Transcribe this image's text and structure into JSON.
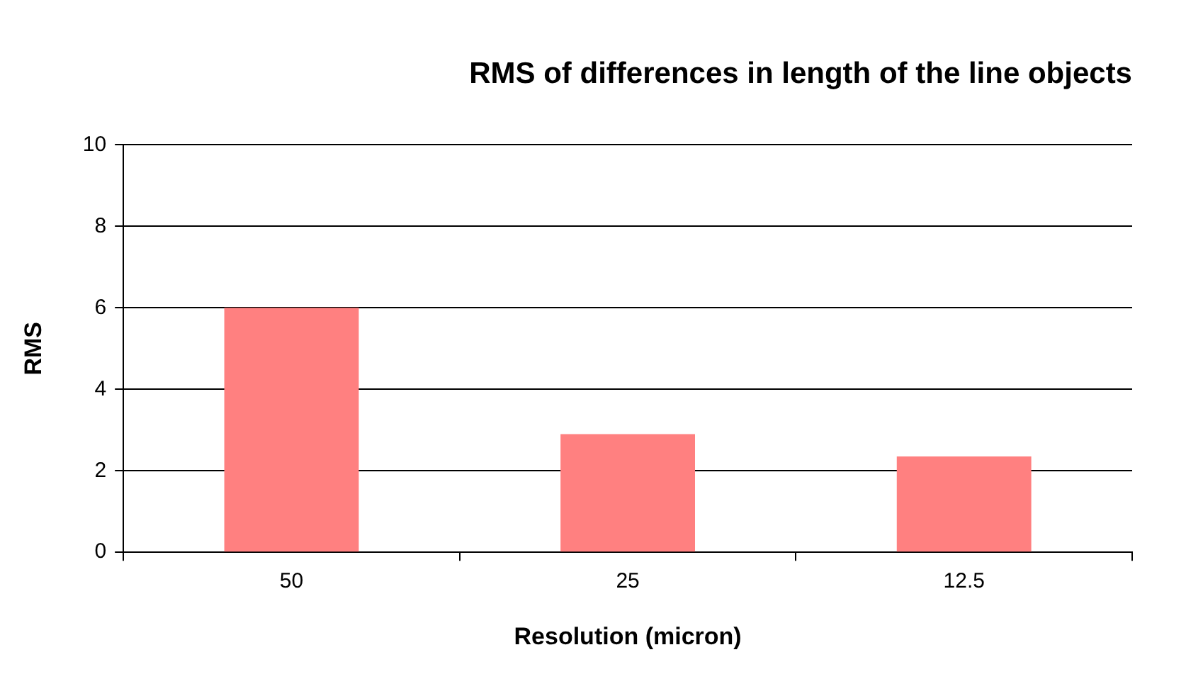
{
  "chart_data": {
    "type": "bar",
    "title": "RMS of differences in length of the line objects",
    "xlabel": "Resolution (micron)",
    "ylabel": "RMS",
    "categories": [
      "50",
      "25",
      "12.5"
    ],
    "values": [
      6.0,
      2.9,
      2.35
    ],
    "color": "#ff8080",
    "ylim": [
      0,
      10
    ],
    "yticks": [
      0,
      2,
      4,
      6,
      8,
      10
    ],
    "grid": "y",
    "legend": false
  }
}
